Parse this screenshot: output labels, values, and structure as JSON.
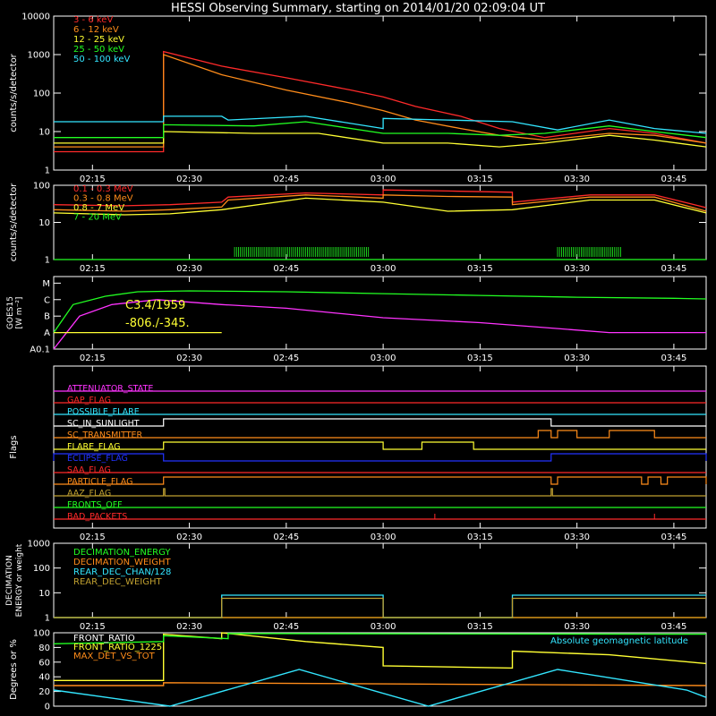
{
  "title": "HESSI Observing Summary, starting on 2014/01/20 02:09:04 UT",
  "colors": {
    "red": "#ff2a2a",
    "orange": "#ff8c1a",
    "yellow": "#ffff33",
    "green": "#22ff22",
    "cyan": "#33e6ff",
    "magenta": "#ff33ff",
    "blue": "#2233ff",
    "olive": "#c0a030",
    "white": "#ffffff",
    "palered": "#ff6060"
  },
  "chart_data": [
    {
      "id": "panel1",
      "type": "line",
      "ylabel": "counts/s/detector",
      "scale": "log",
      "ylim": [
        1,
        10000
      ],
      "y_ticks": [
        "1",
        "10",
        "100",
        "1000",
        "10000"
      ],
      "x_ticks": [
        "02:15",
        "02:30",
        "02:45",
        "03:00",
        "03:15",
        "03:30",
        "03:45"
      ],
      "series": [
        {
          "name": "3 - 6 keV",
          "color": "red",
          "x": [
            "02:09",
            "02:25",
            "02:26",
            "02:26",
            "02:35",
            "02:45",
            "02:55",
            "03:00",
            "03:05",
            "03:12",
            "03:18",
            "03:25",
            "03:35",
            "03:42",
            "03:50"
          ],
          "y": [
            3,
            3,
            3,
            1200,
            500,
            250,
            120,
            80,
            45,
            25,
            12,
            7,
            12,
            9,
            5
          ]
        },
        {
          "name": "6 - 12 keV",
          "color": "orange",
          "x": [
            "02:09",
            "02:25",
            "02:26",
            "02:26",
            "02:35",
            "02:45",
            "02:55",
            "03:00",
            "03:05",
            "03:12",
            "03:18",
            "03:25",
            "03:35",
            "03:42",
            "03:50"
          ],
          "y": [
            4,
            4,
            4,
            1000,
            300,
            120,
            55,
            35,
            20,
            12,
            8,
            6,
            9,
            8,
            5
          ]
        },
        {
          "name": "12 - 25 keV",
          "color": "yellow",
          "x": [
            "02:09",
            "02:25",
            "02:26",
            "02:26",
            "02:40",
            "02:50",
            "03:00",
            "03:10",
            "03:18",
            "03:25",
            "03:35",
            "03:42",
            "03:50"
          ],
          "y": [
            5,
            5,
            5,
            10,
            9,
            9,
            5,
            5,
            4,
            5,
            8,
            6,
            4
          ]
        },
        {
          "name": "25 - 50 keV",
          "color": "green",
          "x": [
            "02:09",
            "02:25",
            "02:26",
            "02:26",
            "02:40",
            "02:48",
            "03:00",
            "03:10",
            "03:18",
            "03:25",
            "03:35",
            "03:42",
            "03:50"
          ],
          "y": [
            7,
            7,
            7,
            15,
            14,
            18,
            9,
            9,
            8,
            9,
            14,
            10,
            7
          ]
        },
        {
          "name": "50 - 100 keV",
          "color": "cyan",
          "x": [
            "02:09",
            "02:25",
            "02:26",
            "02:26",
            "02:35",
            "02:36",
            "02:48",
            "03:00",
            "03:00",
            "03:10",
            "03:20",
            "03:27",
            "03:35",
            "03:42",
            "03:50"
          ],
          "y": [
            18,
            18,
            18,
            25,
            25,
            20,
            25,
            12,
            22,
            20,
            18,
            11,
            20,
            12,
            9
          ]
        }
      ]
    },
    {
      "id": "panel2",
      "type": "line",
      "ylabel": "counts/s/detector",
      "scale": "log",
      "ylim": [
        1,
        100
      ],
      "y_ticks": [
        "1",
        "10",
        "100"
      ],
      "x_ticks": [
        "02:15",
        "02:30",
        "02:45",
        "03:00",
        "03:15",
        "03:30",
        "03:45"
      ],
      "series": [
        {
          "name": "0.1 - 0.3 MeV",
          "color": "red",
          "x": [
            "02:09",
            "02:20",
            "02:27",
            "02:35",
            "02:36",
            "02:48",
            "03:00",
            "03:00",
            "03:10",
            "03:20",
            "03:20",
            "03:32",
            "03:42",
            "03:50"
          ],
          "y": [
            30,
            28,
            30,
            35,
            48,
            62,
            55,
            75,
            70,
            65,
            35,
            55,
            55,
            25
          ]
        },
        {
          "name": "0.3 - 0.8 MeV",
          "color": "orange",
          "x": [
            "02:09",
            "02:20",
            "02:27",
            "02:35",
            "02:36",
            "02:48",
            "03:00",
            "03:00",
            "03:10",
            "03:20",
            "03:20",
            "03:32",
            "03:42",
            "03:50"
          ],
          "y": [
            22,
            20,
            22,
            26,
            40,
            55,
            45,
            55,
            50,
            48,
            30,
            48,
            48,
            20
          ]
        },
        {
          "name": "0.8 - 7 MeV",
          "color": "yellow",
          "x": [
            "02:09",
            "02:20",
            "02:27",
            "02:35",
            "02:48",
            "03:00",
            "03:10",
            "03:20",
            "03:32",
            "03:42",
            "03:50"
          ],
          "y": [
            18,
            16,
            17,
            22,
            45,
            35,
            20,
            22,
            40,
            40,
            18
          ]
        },
        {
          "name": "7 - 20 MeV",
          "color": "green",
          "x": [
            "02:09",
            "03:50"
          ],
          "y": [
            1,
            1
          ]
        }
      ]
    },
    {
      "id": "panel3",
      "type": "line",
      "ylabel": "GOES15 [W m⁻²]",
      "scale": "log",
      "y_ticks": [
        "A0.1",
        "A",
        "B",
        "C",
        "M"
      ],
      "x_ticks": [
        "02:15",
        "02:30",
        "02:45",
        "03:00",
        "03:15",
        "03:30",
        "03:45"
      ],
      "annotations": [
        "C3.4/1959",
        "-806./-345."
      ],
      "series": [
        {
          "color": "green",
          "x": [
            "02:09",
            "02:12",
            "02:17",
            "02:22",
            "02:30",
            "02:45",
            "03:00",
            "03:15",
            "03:30",
            "03:45",
            "03:50"
          ],
          "y": [
            "A",
            "B5",
            "C1.6",
            "C3.0",
            "C3.4",
            "C3.0",
            "C2.3",
            "C1.8",
            "C1.4",
            "C1.2",
            "C1.1"
          ]
        },
        {
          "color": "magenta",
          "x": [
            "02:09",
            "02:13",
            "02:18",
            "02:25",
            "02:35",
            "02:45",
            "03:00",
            "03:15",
            "03:25",
            "03:35",
            "03:50"
          ],
          "y": [
            "A0.1",
            "B1",
            "B5",
            "C1",
            "B5",
            "B3",
            "A8",
            "A4",
            "A2",
            "A1",
            "A1"
          ]
        },
        {
          "color": "yellow",
          "x": [
            "02:09",
            "02:35"
          ],
          "y": [
            "A1",
            "A1"
          ]
        }
      ]
    },
    {
      "id": "panel4",
      "type": "flags",
      "ylabel": "Flags",
      "x_ticks": [
        "02:15",
        "02:30",
        "02:45",
        "03:00",
        "03:15",
        "03:30",
        "03:45"
      ],
      "flags": [
        {
          "name": "ATTENUATOR_STATE",
          "color": "magenta",
          "on": []
        },
        {
          "name": "GAP_FLAG",
          "color": "red",
          "on": []
        },
        {
          "name": "POSSIBLE_FLARE",
          "color": "cyan",
          "on": []
        },
        {
          "name": "SC_IN_SUNLIGHT",
          "color": "white",
          "on": [
            [
              "02:26",
              "03:26"
            ]
          ]
        },
        {
          "name": "SC_TRANSMITTER",
          "color": "orange",
          "on": [
            [
              "03:24",
              "03:26"
            ],
            [
              "03:27",
              "03:30"
            ],
            [
              "03:35",
              "03:42"
            ]
          ]
        },
        {
          "name": "FLARE_FLAG",
          "color": "yellow",
          "on": [
            [
              "02:26",
              "03:00"
            ],
            [
              "03:06",
              "03:14"
            ]
          ]
        },
        {
          "name": "ECLIPSE_FLAG",
          "color": "blue",
          "on": [
            [
              "02:09",
              "02:26"
            ],
            [
              "03:26",
              "03:50"
            ]
          ]
        },
        {
          "name": "SAA_FLAG",
          "color": "red",
          "on": []
        },
        {
          "name": "PARTICLE_FLAG",
          "color": "orange",
          "on": [
            [
              "02:26",
              "03:26"
            ],
            [
              "03:27",
              "03:40"
            ],
            [
              "03:41",
              "03:43"
            ],
            [
              "03:44",
              "03:50"
            ]
          ]
        },
        {
          "name": "AAZ_FLAG",
          "color": "olive",
          "on": [
            [
              "02:26",
              "02:26"
            ],
            [
              "03:26",
              "03:26"
            ]
          ]
        },
        {
          "name": "FRONTS_OFF",
          "color": "green",
          "on": []
        },
        {
          "name": "BAD_PACKETS",
          "color": "red",
          "on": []
        }
      ]
    },
    {
      "id": "panel5",
      "type": "line",
      "ylabel": "DECIMATION ENERGY or weight",
      "scale": "log",
      "ylim": [
        1,
        1000
      ],
      "y_ticks": [
        "1",
        "10",
        "100",
        "1000"
      ],
      "x_ticks": [
        "02:15",
        "02:30",
        "02:45",
        "03:00",
        "03:15",
        "03:30",
        "03:45"
      ],
      "series": [
        {
          "name": "DECIMATION_ENERGY",
          "color": "green",
          "x": [
            "02:09",
            "03:50"
          ],
          "y": [
            1,
            1
          ]
        },
        {
          "name": "DECIMATION_WEIGHT",
          "color": "orange",
          "x": [
            "02:09",
            "03:50"
          ],
          "y": [
            1,
            1
          ]
        },
        {
          "name": "REAR_DEC_CHAN/128",
          "color": "cyan",
          "x": [
            "02:09",
            "02:35",
            "02:35",
            "03:00",
            "03:00",
            "03:20",
            "03:20",
            "03:50"
          ],
          "y": [
            1,
            1,
            8,
            8,
            1,
            1,
            8,
            8
          ]
        },
        {
          "name": "REAR_DEC_WEIGHT",
          "color": "olive",
          "x": [
            "02:09",
            "02:35",
            "02:35",
            "03:00",
            "03:00",
            "03:20",
            "03:20",
            "03:50"
          ],
          "y": [
            1,
            1,
            6,
            6,
            1,
            1,
            6,
            6
          ]
        }
      ]
    },
    {
      "id": "panel6",
      "type": "line",
      "ylabel": "Degrees or %",
      "ylim": [
        0,
        100
      ],
      "y_ticks": [
        "0",
        "20",
        "40",
        "60",
        "80",
        "100"
      ],
      "series": [
        {
          "name": "FRONT_RATIO",
          "color": "white",
          "x": [
            "02:09",
            "03:50"
          ],
          "y": [
            100,
            100
          ]
        },
        {
          "name": "FRONT_RATIO_1225",
          "color": "yellow",
          "x": [
            "02:09",
            "02:26",
            "02:26",
            "02:35",
            "02:35",
            "02:48",
            "03:00",
            "03:00",
            "03:20",
            "03:20",
            "03:35",
            "03:50"
          ],
          "y": [
            35,
            35,
            98,
            92,
            100,
            88,
            80,
            55,
            52,
            75,
            70,
            58
          ]
        },
        {
          "name": "MAX_DET_VS_TOT",
          "color": "orange",
          "x": [
            "02:09",
            "02:26",
            "02:26",
            "03:50"
          ],
          "y": [
            28,
            28,
            32,
            28
          ]
        },
        {
          "name": "Absolute geomagnetic latitude",
          "color": "cyan",
          "x": [
            "02:09",
            "02:27",
            "02:47",
            "03:07",
            "03:27",
            "03:47",
            "03:50"
          ],
          "y": [
            22,
            0,
            50,
            0,
            50,
            22,
            12
          ]
        },
        {
          "color": "green",
          "x": [
            "02:09",
            "02:26",
            "02:26",
            "02:36",
            "02:36",
            "03:50"
          ],
          "y": [
            85,
            88,
            96,
            92,
            99,
            98
          ]
        }
      ]
    }
  ]
}
